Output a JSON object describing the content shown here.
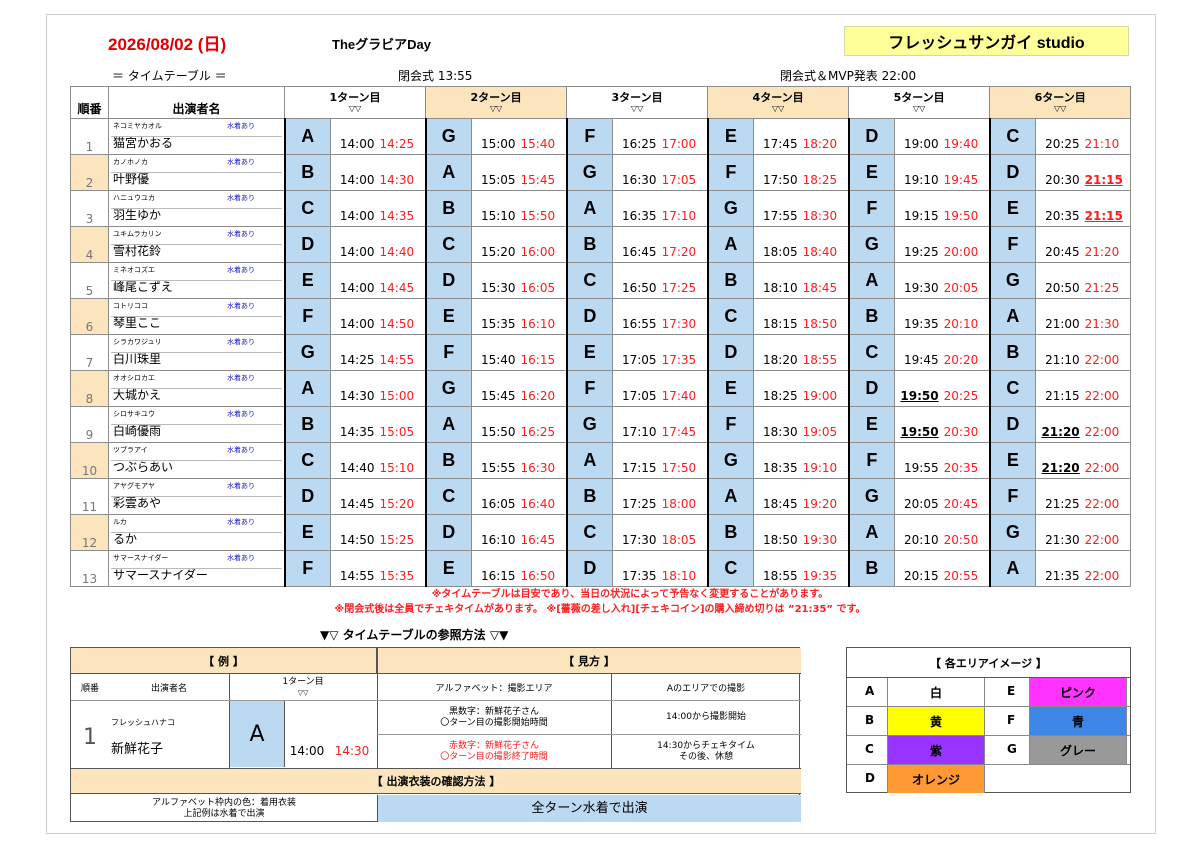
{
  "header": {
    "date": "2026/08/02 (日)",
    "event": "TheグラビアDay",
    "studio": "フレッシュサンガイ studio",
    "timetable_label": "＝ タイムテーブル ＝",
    "open_time": "閉会式 13:55",
    "close_time": "閉会式＆MVP発表 22:00"
  },
  "columns": {
    "no": "順番",
    "name": "出演者名",
    "turns": [
      "1ターン目",
      "2ターン目",
      "3ターン目",
      "4ターン目",
      "5ターン目",
      "6ターン目"
    ],
    "turn_marker": "▽▽"
  },
  "swim_label": "水着あり",
  "performers": [
    {
      "no": "1",
      "kana": "ネコミヤカオル",
      "name": "猫宮かおる",
      "swim": true,
      "turns": [
        [
          "A",
          "14:00",
          "14:25"
        ],
        [
          "G",
          "15:00",
          "15:40"
        ],
        [
          "F",
          "16:25",
          "17:00"
        ],
        [
          "E",
          "17:45",
          "18:20"
        ],
        [
          "D",
          "19:00",
          "19:40"
        ],
        [
          "C",
          "20:25",
          "21:10"
        ]
      ]
    },
    {
      "no": "2",
      "kana": "カノホノカ",
      "name": "叶野優",
      "swim": true,
      "turns": [
        [
          "B",
          "14:00",
          "14:30"
        ],
        [
          "A",
          "15:05",
          "15:45"
        ],
        [
          "G",
          "16:30",
          "17:05"
        ],
        [
          "F",
          "17:50",
          "18:25"
        ],
        [
          "E",
          "19:10",
          "19:45"
        ],
        [
          "D",
          "20:30",
          "21:15"
        ]
      ]
    },
    {
      "no": "3",
      "kana": "ハニュウユカ",
      "name": "羽生ゆか",
      "swim": true,
      "turns": [
        [
          "C",
          "14:00",
          "14:35"
        ],
        [
          "B",
          "15:10",
          "15:50"
        ],
        [
          "A",
          "16:35",
          "17:10"
        ],
        [
          "G",
          "17:55",
          "18:30"
        ],
        [
          "F",
          "19:15",
          "19:50"
        ],
        [
          "E",
          "20:35",
          "21:15"
        ]
      ]
    },
    {
      "no": "4",
      "kana": "ユキムラカリン",
      "name": "雪村花鈴",
      "swim": true,
      "turns": [
        [
          "D",
          "14:00",
          "14:40"
        ],
        [
          "C",
          "15:20",
          "16:00"
        ],
        [
          "B",
          "16:45",
          "17:20"
        ],
        [
          "A",
          "18:05",
          "18:40"
        ],
        [
          "G",
          "19:25",
          "20:00"
        ],
        [
          "F",
          "20:45",
          "21:20"
        ]
      ]
    },
    {
      "no": "5",
      "kana": "ミネオコズエ",
      "name": "峰尾こずえ",
      "swim": true,
      "turns": [
        [
          "E",
          "14:00",
          "14:45"
        ],
        [
          "D",
          "15:30",
          "16:05"
        ],
        [
          "C",
          "16:50",
          "17:25"
        ],
        [
          "B",
          "18:10",
          "18:45"
        ],
        [
          "A",
          "19:30",
          "20:05"
        ],
        [
          "G",
          "20:50",
          "21:25"
        ]
      ]
    },
    {
      "no": "6",
      "kana": "コトリココ",
      "name": "琴里ここ",
      "swim": true,
      "turns": [
        [
          "F",
          "14:00",
          "14:50"
        ],
        [
          "E",
          "15:35",
          "16:10"
        ],
        [
          "D",
          "16:55",
          "17:30"
        ],
        [
          "C",
          "18:15",
          "18:50"
        ],
        [
          "B",
          "19:35",
          "20:10"
        ],
        [
          "A",
          "21:00",
          "21:30"
        ]
      ]
    },
    {
      "no": "7",
      "kana": "シラカワジュリ",
      "name": "白川珠里",
      "swim": true,
      "turns": [
        [
          "G",
          "14:25",
          "14:55"
        ],
        [
          "F",
          "15:40",
          "16:15"
        ],
        [
          "E",
          "17:05",
          "17:35"
        ],
        [
          "D",
          "18:20",
          "18:55"
        ],
        [
          "C",
          "19:45",
          "20:20"
        ],
        [
          "B",
          "21:10",
          "22:00"
        ]
      ]
    },
    {
      "no": "8",
      "kana": "オオシロカエ",
      "name": "大城かえ",
      "swim": true,
      "turns": [
        [
          "A",
          "14:30",
          "15:00"
        ],
        [
          "G",
          "15:45",
          "16:20"
        ],
        [
          "F",
          "17:05",
          "17:40"
        ],
        [
          "E",
          "18:25",
          "19:00"
        ],
        [
          "D",
          "19:50",
          "20:25"
        ],
        [
          "C",
          "21:15",
          "22:00"
        ]
      ]
    },
    {
      "no": "9",
      "kana": "シロサキユウ",
      "name": "白崎優雨",
      "swim": true,
      "turns": [
        [
          "B",
          "14:35",
          "15:05"
        ],
        [
          "A",
          "15:50",
          "16:25"
        ],
        [
          "G",
          "17:10",
          "17:45"
        ],
        [
          "F",
          "18:30",
          "19:05"
        ],
        [
          "E",
          "19:50",
          "20:30"
        ],
        [
          "D",
          "21:20",
          "22:00"
        ]
      ]
    },
    {
      "no": "10",
      "kana": "ツブラアイ",
      "name": "つぶらあい",
      "swim": true,
      "turns": [
        [
          "C",
          "14:40",
          "15:10"
        ],
        [
          "B",
          "15:55",
          "16:30"
        ],
        [
          "A",
          "17:15",
          "17:50"
        ],
        [
          "G",
          "18:35",
          "19:10"
        ],
        [
          "F",
          "19:55",
          "20:35"
        ],
        [
          "E",
          "21:20",
          "22:00"
        ]
      ]
    },
    {
      "no": "11",
      "kana": "アヤグモアヤ",
      "name": "彩雲あや",
      "swim": true,
      "turns": [
        [
          "D",
          "14:45",
          "15:20"
        ],
        [
          "C",
          "16:05",
          "16:40"
        ],
        [
          "B",
          "17:25",
          "18:00"
        ],
        [
          "A",
          "18:45",
          "19:20"
        ],
        [
          "G",
          "20:05",
          "20:45"
        ],
        [
          "F",
          "21:25",
          "22:00"
        ]
      ]
    },
    {
      "no": "12",
      "kana": "ルカ",
      "name": "るか",
      "swim": true,
      "turns": [
        [
          "E",
          "14:50",
          "15:25"
        ],
        [
          "D",
          "16:10",
          "16:45"
        ],
        [
          "C",
          "17:30",
          "18:05"
        ],
        [
          "B",
          "18:50",
          "19:30"
        ],
        [
          "A",
          "20:10",
          "20:50"
        ],
        [
          "G",
          "21:30",
          "22:00"
        ]
      ]
    },
    {
      "no": "13",
      "kana": "サマースナイダー",
      "name": "サマースナイダー",
      "swim": true,
      "turns": [
        [
          "F",
          "14:55",
          "15:35"
        ],
        [
          "E",
          "16:15",
          "16:50"
        ],
        [
          "D",
          "17:35",
          "18:10"
        ],
        [
          "C",
          "18:55",
          "19:35"
        ],
        [
          "B",
          "20:15",
          "20:55"
        ],
        [
          "A",
          "21:35",
          "22:00"
        ]
      ]
    }
  ],
  "notes": [
    "※タイムテーブルは目安であり、当日の状況によって予告なく変更することがあります。",
    "※閉会式後は全員でチェキタイムがあります。 ※[薔薇の差し入れ][チェキコイン]の購入締め切りは ”21:35” です。"
  ],
  "reference": {
    "title": "▼▽ タイムテーブルの参照方法 ▽▼",
    "example_header": "【 例 】",
    "howto_header": "【 見方 】",
    "ex_no_label": "順番",
    "ex_name_label": "出演者名",
    "ex_turn_label": "1ターン目",
    "ex_turn_marker": "▽▽",
    "ex_no": "1",
    "ex_kana": "フレッシュハナコ",
    "ex_name": "新鮮花子",
    "ex_area": "A",
    "ex_start": "14:00",
    "ex_end": "14:30",
    "col_alpha": "アルファベット：撮影エリア",
    "col_alpha_ex": "Aのエリアでの撮影",
    "black_desc": "黒数字：新鮮花子さん\n〇ターン目の撮影開始時間",
    "black_ex": "14:00から撮影開始",
    "red_desc": "赤数字：新鮮花子さん\n〇ターン目の撮影終了時間",
    "red_ex": "14:30からチェキタイム\nその後、休憩",
    "costume_header": "【 出演衣装の確認方法 】",
    "costume_desc": "アルファベット枠内の色：着用衣装\n上記例は水着で出演",
    "costume_value": "全ターン水着で出演"
  },
  "legend": {
    "title": "【 各エリアイメージ 】",
    "items": [
      {
        "letter": "A",
        "label": "白",
        "color": "#ffffff"
      },
      {
        "letter": "E",
        "label": "ピンク",
        "color": "#ff33ff"
      },
      {
        "letter": "B",
        "label": "黄",
        "color": "#ffff00"
      },
      {
        "letter": "F",
        "label": "青",
        "color": "#3d85e6"
      },
      {
        "letter": "C",
        "label": "紫",
        "color": "#9933ff"
      },
      {
        "letter": "G",
        "label": "グレー",
        "color": "#999999"
      },
      {
        "letter": "D",
        "label": "オレンジ",
        "color": "#ff9933"
      }
    ]
  },
  "colors": {
    "area_bg": "#bcd9f2",
    "accent_orange": "#fce4bd",
    "end_time": "#ff1a1a"
  }
}
